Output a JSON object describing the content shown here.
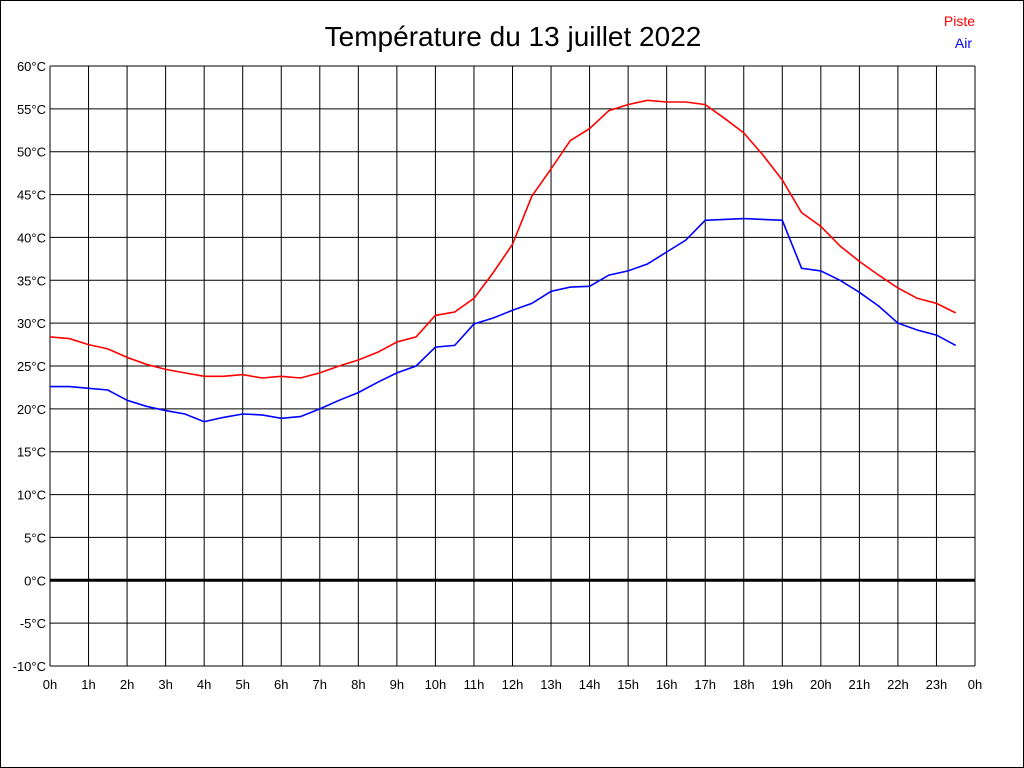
{
  "chart_data": {
    "type": "line",
    "title": "Température du 13 juillet 2022",
    "xlabel": "",
    "ylabel": "",
    "x_ticks": [
      "0h",
      "1h",
      "2h",
      "3h",
      "4h",
      "5h",
      "6h",
      "7h",
      "8h",
      "9h",
      "10h",
      "11h",
      "12h",
      "13h",
      "14h",
      "15h",
      "16h",
      "17h",
      "18h",
      "19h",
      "20h",
      "21h",
      "22h",
      "23h",
      "0h"
    ],
    "y_ticks": [
      "60°C",
      "55°C",
      "50°C",
      "45°C",
      "40°C",
      "35°C",
      "30°C",
      "25°C",
      "20°C",
      "15°C",
      "10°C",
      "5°C",
      "0°C",
      "-5°C",
      "-10°C"
    ],
    "xlim": [
      0,
      24
    ],
    "ylim": [
      -10,
      60
    ],
    "grid": true,
    "legend_position": "top-right",
    "x": [
      0,
      0.5,
      1,
      1.5,
      2,
      2.5,
      3,
      3.5,
      4,
      4.5,
      5,
      5.5,
      6,
      6.5,
      7,
      7.5,
      8,
      8.5,
      9,
      9.5,
      10,
      10.5,
      11,
      11.5,
      12,
      12.5,
      13,
      13.5,
      14,
      14.5,
      15,
      15.5,
      16,
      16.5,
      17,
      17.5,
      18,
      18.5,
      19,
      19.5,
      20,
      20.5,
      21,
      21.5,
      22,
      22.5,
      23,
      23.5
    ],
    "series": [
      {
        "name": "Piste",
        "color": "#ff0000",
        "values": [
          28.4,
          28.2,
          27.5,
          27.0,
          26.0,
          25.2,
          24.6,
          24.2,
          23.8,
          23.8,
          24.0,
          23.6,
          23.8,
          23.6,
          24.2,
          25.0,
          25.7,
          26.6,
          27.8,
          28.4,
          30.9,
          31.3,
          32.9,
          35.9,
          39.2,
          44.8,
          48.0,
          51.3,
          52.7,
          54.8,
          55.5,
          56.0,
          55.8,
          55.8,
          55.5,
          53.9,
          52.2,
          49.6,
          46.7,
          42.9,
          41.3,
          39.0,
          37.2,
          35.6,
          34.1,
          32.9,
          32.3,
          31.2
        ]
      },
      {
        "name": "Air",
        "color": "#0000ff",
        "values": [
          22.6,
          22.6,
          22.4,
          22.2,
          21.0,
          20.3,
          19.8,
          19.4,
          18.5,
          19.0,
          19.4,
          19.3,
          18.9,
          19.1,
          20.0,
          21.0,
          21.9,
          23.1,
          24.2,
          25.0,
          27.2,
          27.4,
          29.9,
          30.6,
          31.5,
          32.3,
          33.7,
          34.2,
          34.3,
          35.6,
          36.1,
          36.9,
          38.3,
          39.7,
          42.0,
          42.1,
          42.2,
          42.1,
          42.0,
          36.4,
          36.1,
          35.0,
          33.6,
          32.0,
          30.0,
          29.2,
          28.6,
          27.4
        ]
      }
    ]
  }
}
